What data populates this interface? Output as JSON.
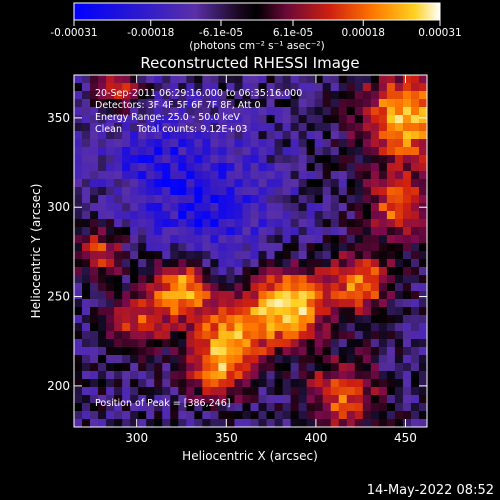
{
  "colorbar": {
    "tick_labels": [
      "-0.00031",
      "-0.00018",
      "-6.1e-05",
      "6.1e-05",
      "0.00018",
      "0.00031"
    ],
    "tick_values": [
      -0.00031,
      -0.00018,
      -6.1e-05,
      6.1e-05,
      0.00018,
      0.00031
    ],
    "range": [
      -0.00031,
      0.00031
    ],
    "unit_label": "(photons cm⁻² s⁻¹ asec⁻²)"
  },
  "chart_data": {
    "type": "heatmap",
    "title": "Reconstructed RHESSI Image",
    "xlabel": "Heliocentric X (arcsec)",
    "ylabel": "Heliocentric Y (arcsec)",
    "xlim": [
      265,
      462
    ],
    "ylim": [
      177,
      374
    ],
    "x_ticks": [
      300,
      350,
      400,
      450
    ],
    "y_ticks": [
      200,
      250,
      300,
      350
    ],
    "x_tick_labels": [
      "300",
      "350",
      "400",
      "450"
    ],
    "y_tick_labels": [
      "200",
      "250",
      "300",
      "350"
    ],
    "colormap": [
      "#0000ff",
      "#3a1cc0",
      "#5a30a8",
      "#000000",
      "#7a0a4a",
      "#d02010",
      "#ff7a00",
      "#ffd020",
      "#ffffff"
    ],
    "peak": [
      386,
      246
    ],
    "annotations": [
      "20-Sep-2011 06:29:16.000 to 06:35:16.000",
      "Detectors: 3F 4F 5F 6F 7F 8F, Att 0",
      "Energy Range: 25.0 - 50.0 keV",
      "Clean     Total counts: 9.12E+03"
    ],
    "peak_label": "Position of Peak = [386,246]"
  },
  "timestamp": "14-May-2022 08:52"
}
